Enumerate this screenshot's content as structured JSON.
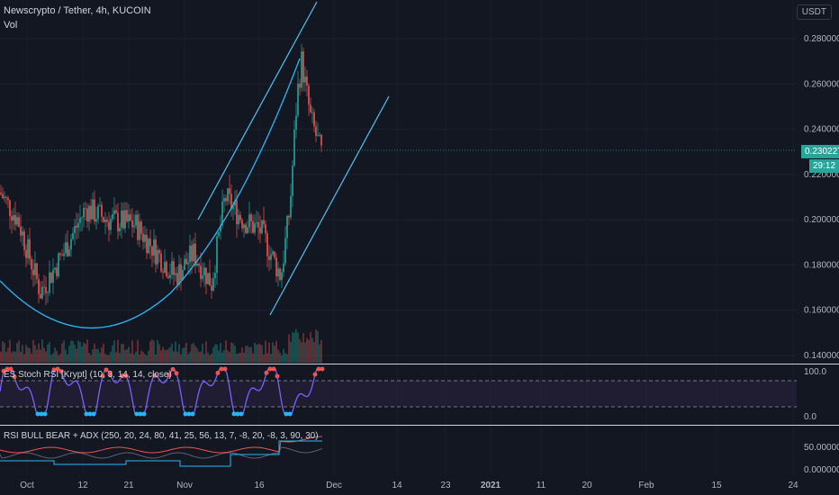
{
  "header": {
    "symbol": "Newscrypto / Tether, 4h, KUCOIN",
    "vol": "Vol"
  },
  "currency_button": "USDT",
  "price_scale": {
    "labels": [
      "0.280000",
      "0.260000",
      "0.240000",
      "0.220000",
      "0.200000",
      "0.180000",
      "0.160000",
      "0.140000"
    ],
    "current_price": "0.230227",
    "countdown": "29:12"
  },
  "stoch": {
    "title": "ES Stoch RSI [Krypt] (10, 3, 14, 14, close)",
    "upper": "100.0",
    "lower": "0.0"
  },
  "rsi": {
    "title": "RSI BULL BEAR + ADX (250, 20, 24, 80, 41, 25, 56, 13, 7, -8, 20, -8, 3, 90, 30)",
    "upper": "50.000000",
    "lower": "0.000000"
  },
  "time_axis": [
    "Oct",
    "12",
    "21",
    "Nov",
    "16",
    "Dec",
    "14",
    "23",
    "2021",
    "11",
    "20",
    "Feb",
    "15",
    "24"
  ],
  "colors": {
    "bg": "#131722",
    "up": "#26a69a",
    "down": "#ef5350",
    "line": "#4fc3f7",
    "price_tag": "#26a69a"
  },
  "chart_data": {
    "type": "candlestick",
    "y_axis_range": [
      0.14,
      0.28
    ],
    "last_close": 0.230227,
    "trendlines": "ascending parallel channel and rounded-bottom arc"
  }
}
